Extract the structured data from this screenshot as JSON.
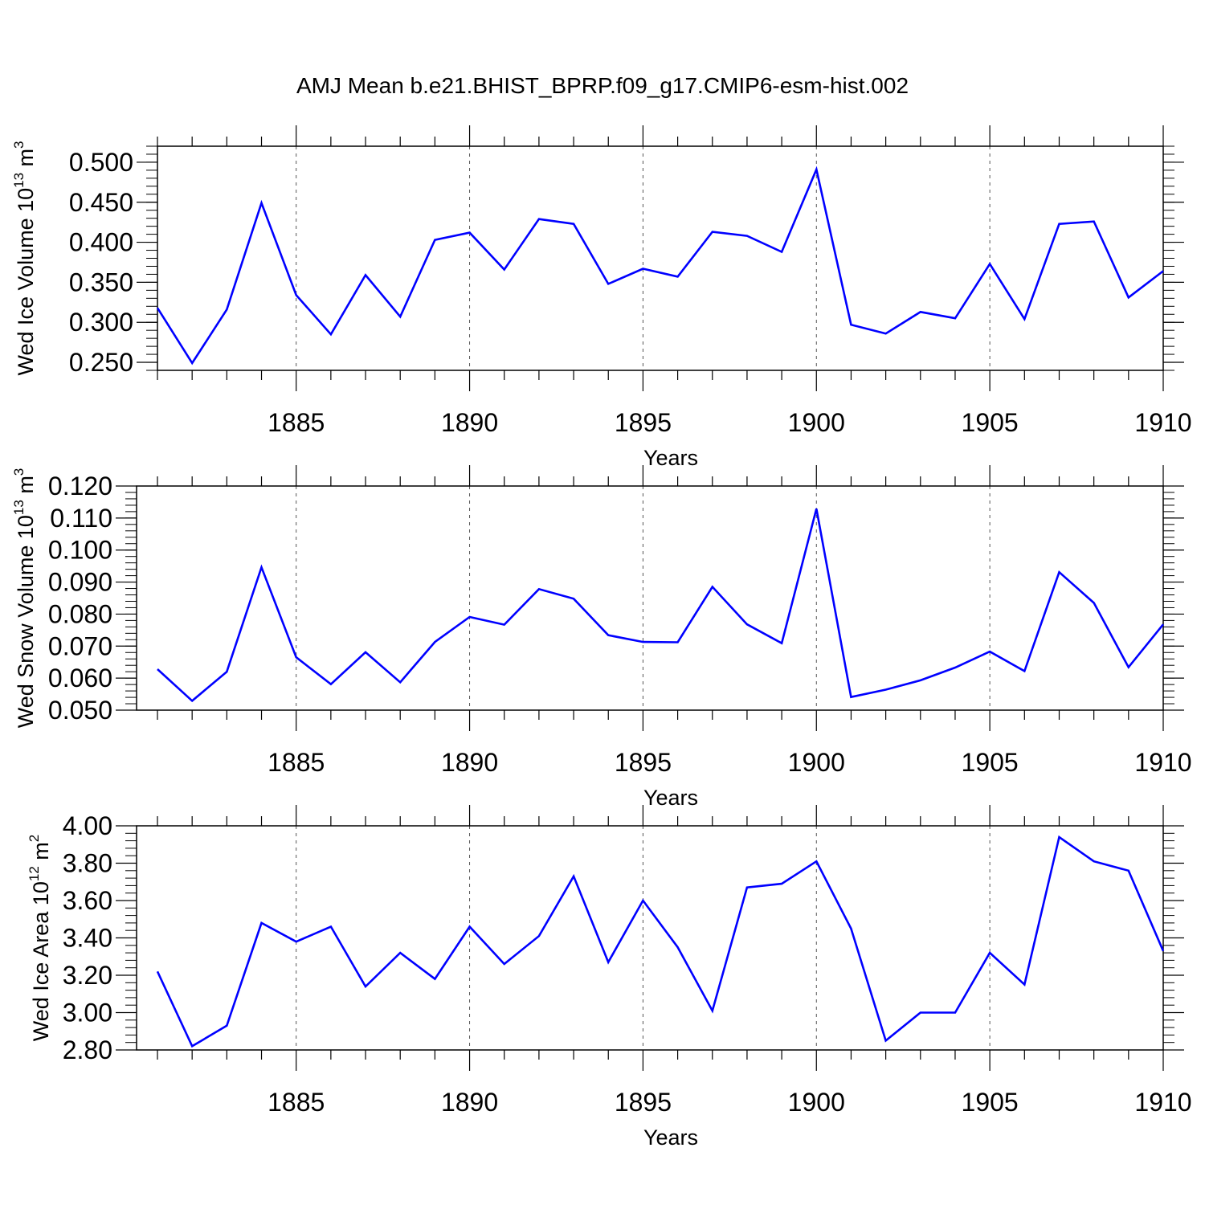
{
  "title": "AMJ Mean b.e21.BHIST_BPRP.f09_g17.CMIP6-esm-hist.002",
  "colors": {
    "line": "#0000ff",
    "axis": "#000000",
    "grid": "#555555"
  },
  "chart_data": [
    {
      "type": "line",
      "xlabel": "Years",
      "ylabel": {
        "prefix": "Wed Ice Volume 10",
        "exponent": "13",
        "unit": " m",
        "unit_exponent": "3"
      },
      "xlim": [
        1881,
        1910
      ],
      "ylim": [
        0.24,
        0.52
      ],
      "xticks": [
        1885,
        1890,
        1895,
        1900,
        1905,
        1910
      ],
      "xtick_labels": [
        "1885",
        "1890",
        "1895",
        "1900",
        "1905",
        "1910"
      ],
      "yticks": [
        0.25,
        0.3,
        0.35,
        0.4,
        0.45,
        0.5
      ],
      "ytick_labels": [
        "0.250",
        "0.300",
        "0.350",
        "0.400",
        "0.450",
        "0.500"
      ],
      "y_minor_step": 0.01,
      "grid": "vertical dashed at major x ticks",
      "x": [
        1881,
        1882,
        1883,
        1884,
        1885,
        1886,
        1887,
        1888,
        1889,
        1890,
        1891,
        1892,
        1893,
        1894,
        1895,
        1896,
        1897,
        1898,
        1899,
        1900,
        1901,
        1902,
        1903,
        1904,
        1905,
        1906,
        1907,
        1908,
        1909,
        1910
      ],
      "values": [
        0.318,
        0.249,
        0.316,
        0.449,
        0.334,
        0.285,
        0.359,
        0.307,
        0.403,
        0.412,
        0.366,
        0.429,
        0.423,
        0.348,
        0.367,
        0.357,
        0.413,
        0.408,
        0.388,
        0.491,
        0.297,
        0.286,
        0.313,
        0.305,
        0.373,
        0.304,
        0.423,
        0.426,
        0.331,
        0.364
      ]
    },
    {
      "type": "line",
      "xlabel": "Years",
      "ylabel": {
        "prefix": "Wed Snow Volume 10",
        "exponent": "13",
        "unit": " m",
        "unit_exponent": "3"
      },
      "xlim": [
        1881,
        1910
      ],
      "ylim": [
        0.05,
        0.12
      ],
      "xticks": [
        1885,
        1890,
        1895,
        1900,
        1905,
        1910
      ],
      "xtick_labels": [
        "1885",
        "1890",
        "1895",
        "1900",
        "1905",
        "1910"
      ],
      "yticks": [
        0.05,
        0.06,
        0.07,
        0.08,
        0.09,
        0.1,
        0.11,
        0.12
      ],
      "ytick_labels": [
        "0.050",
        "0.060",
        "0.070",
        "0.080",
        "0.090",
        "0.100",
        "0.110",
        "0.120"
      ],
      "y_minor_step": 0.002,
      "grid": "vertical dashed at major x ticks",
      "x": [
        1881,
        1882,
        1883,
        1884,
        1885,
        1886,
        1887,
        1888,
        1889,
        1890,
        1891,
        1892,
        1893,
        1894,
        1895,
        1896,
        1897,
        1898,
        1899,
        1900,
        1901,
        1902,
        1903,
        1904,
        1905,
        1906,
        1907,
        1908,
        1909,
        1910
      ],
      "values": [
        0.0628,
        0.0529,
        0.062,
        0.0946,
        0.0665,
        0.0581,
        0.0681,
        0.0587,
        0.0713,
        0.0791,
        0.0767,
        0.0878,
        0.0848,
        0.0734,
        0.0713,
        0.0712,
        0.0885,
        0.0768,
        0.0709,
        0.1129,
        0.0541,
        0.0564,
        0.0593,
        0.0633,
        0.0683,
        0.0622,
        0.0931,
        0.0835,
        0.0634,
        0.0768
      ]
    },
    {
      "type": "line",
      "xlabel": "Years",
      "ylabel": {
        "prefix": "Wed Ice Area 10",
        "exponent": "12",
        "unit": " m",
        "unit_exponent": "2"
      },
      "xlim": [
        1881,
        1910
      ],
      "ylim": [
        2.8,
        4.0
      ],
      "xticks": [
        1885,
        1890,
        1895,
        1900,
        1905,
        1910
      ],
      "xtick_labels": [
        "1885",
        "1890",
        "1895",
        "1900",
        "1905",
        "1910"
      ],
      "yticks": [
        2.8,
        3.0,
        3.2,
        3.4,
        3.6,
        3.8,
        4.0
      ],
      "ytick_labels": [
        "2.80",
        "3.00",
        "3.20",
        "3.40",
        "3.60",
        "3.80",
        "4.00"
      ],
      "y_minor_step": 0.04,
      "grid": "vertical dashed at major x ticks",
      "x": [
        1881,
        1882,
        1883,
        1884,
        1885,
        1886,
        1887,
        1888,
        1889,
        1890,
        1891,
        1892,
        1893,
        1894,
        1895,
        1896,
        1897,
        1898,
        1899,
        1900,
        1901,
        1902,
        1903,
        1904,
        1905,
        1906,
        1907,
        1908,
        1909,
        1910
      ],
      "values": [
        3.22,
        2.82,
        2.93,
        3.48,
        3.38,
        3.46,
        3.14,
        3.32,
        3.18,
        3.46,
        3.26,
        3.41,
        3.73,
        3.27,
        3.6,
        3.35,
        3.01,
        3.67,
        3.69,
        3.81,
        3.45,
        2.85,
        3.0,
        3.0,
        3.32,
        3.15,
        3.94,
        3.81,
        3.76,
        3.33
      ]
    }
  ]
}
